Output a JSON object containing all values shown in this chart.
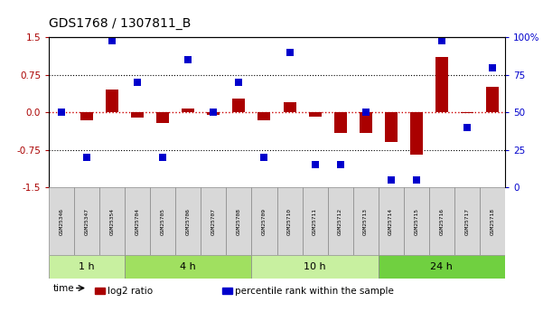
{
  "title": "GDS1768 / 1307811_B",
  "samples": [
    "GSM25346",
    "GSM25347",
    "GSM25354",
    "GSM25704",
    "GSM25705",
    "GSM25706",
    "GSM25707",
    "GSM25708",
    "GSM25709",
    "GSM25710",
    "GSM25711",
    "GSM25712",
    "GSM25713",
    "GSM25714",
    "GSM25715",
    "GSM25716",
    "GSM25717",
    "GSM25718"
  ],
  "log2_ratio": [
    0.0,
    -0.15,
    0.45,
    -0.1,
    -0.22,
    0.08,
    -0.05,
    0.28,
    -0.15,
    0.2,
    -0.08,
    -0.42,
    -0.42,
    -0.6,
    -0.85,
    1.1,
    -0.02,
    0.52
  ],
  "percentile": [
    50,
    20,
    98,
    70,
    20,
    85,
    50,
    70,
    20,
    90,
    15,
    15,
    50,
    5,
    5,
    98,
    40,
    80
  ],
  "groups": [
    {
      "label": "1 h",
      "start": 0,
      "end": 3,
      "color": "#c8f0a0"
    },
    {
      "label": "4 h",
      "start": 3,
      "end": 8,
      "color": "#a0e060"
    },
    {
      "label": "10 h",
      "start": 8,
      "end": 13,
      "color": "#c8f0a0"
    },
    {
      "label": "24 h",
      "start": 13,
      "end": 18,
      "color": "#70d040"
    }
  ],
  "ylim_left": [
    -1.5,
    1.5
  ],
  "ylim_right": [
    0,
    100
  ],
  "yticks_left": [
    -1.5,
    -0.75,
    0.0,
    0.75,
    1.5
  ],
  "yticks_right": [
    0,
    25,
    50,
    75,
    100
  ],
  "bar_color": "#aa0000",
  "dot_color": "#0000cc",
  "hline_color": "#cc0000",
  "dot_size": 30,
  "bar_width": 0.5,
  "sample_box_color": "#d8d8d8",
  "fig_bg": "#ffffff"
}
